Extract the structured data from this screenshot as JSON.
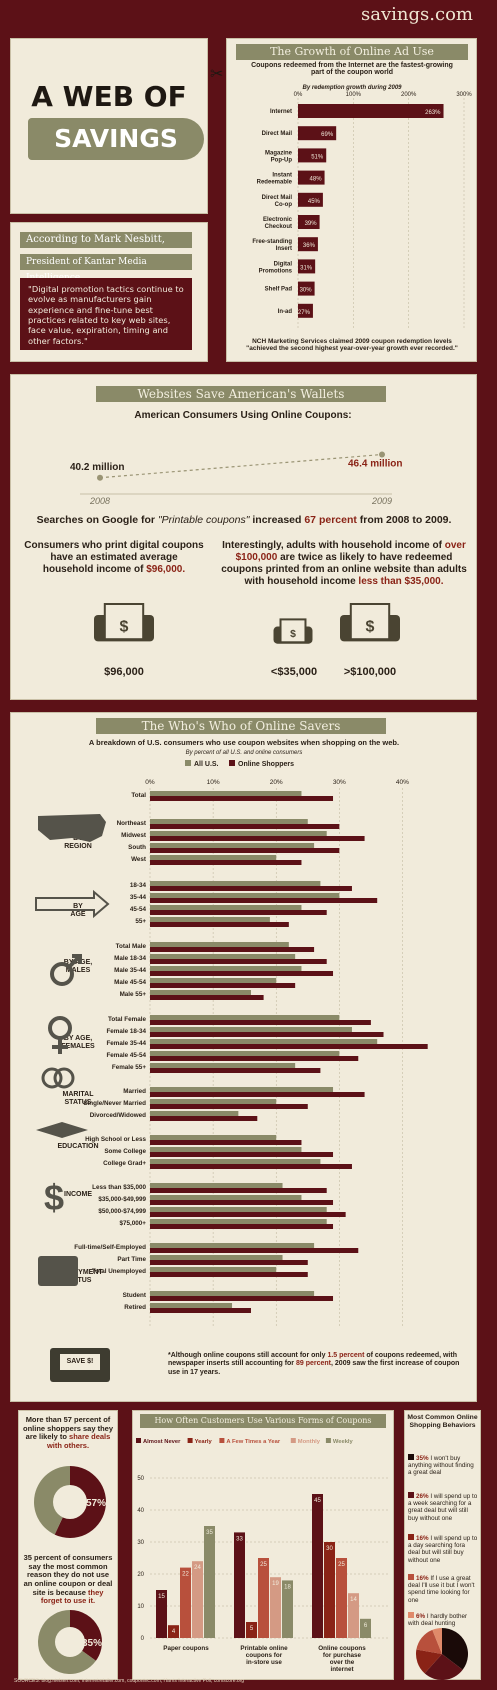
{
  "brand": "savings.com",
  "title": {
    "line1": "A WEB OF",
    "line2": "SAVINGS"
  },
  "quote": {
    "line1": "According to Mark Nesbitt,",
    "line2": "President of Kantar Media Intelligence,",
    "text": "\"Digital promotion tactics continue to evolve as manufacturers gain experience and fine-tune best practices related to key web sites, face value, expiration, timing and other factors.\""
  },
  "growth": {
    "title": "The Growth of Online Ad Use",
    "subtitle": "Coupons redeemed from the Internet are the fastest-growing part of the coupon world",
    "note": "By redemption growth during 2009",
    "footer": "NCH Marketing Services claimed 2009 coupon redemption levels \"achieved the second highest year-over-year growth ever recorded.\""
  },
  "websites": {
    "title": "Websites Save American's Wallets",
    "subtitle": "American Consumers Using Online Coupons:",
    "google_text_a": "Searches on Google for ",
    "google_text_b": "\"Printable coupons\"",
    "google_text_c": " increased ",
    "google_text_d": "67 percent",
    "google_text_e": " from 2008 to 2009.",
    "consumers_a": "Consumers who print digital coupons have an estimated average household income of ",
    "consumers_b": "$96,000.",
    "adults_a": "Interestingly, adults with household income of ",
    "adults_b": "over $100,000",
    "adults_c": " are twice as likely to have redeemed coupons printed from an online website than adults with household income ",
    "adults_d": "less than $35,000.",
    "printer1_label": "$96,000",
    "printer2_label": "<$35,000",
    "printer3_label": ">$100,000"
  },
  "who": {
    "title": "The Who's Who of Online Savers",
    "subtitle": "A breakdown of U.S. consumers who use coupon websites when shopping on the web.",
    "note": "By percent of all U.S. and online consumers",
    "groups": [
      "BY REGION",
      "BY AGE",
      "BY AGE, MALES",
      "BY AGE, FEMALES",
      "MARITAL STATUS",
      "EDUCATION",
      "INCOME",
      "EMPLOYMENT STATUS"
    ],
    "badge": "SAVE $!",
    "footnote_a": "*Although online coupons still account for only ",
    "footnote_b": "1.5 percent",
    "footnote_c": " of coupons redeemed, with newspaper inserts still accounting for ",
    "footnote_d": "89 percent",
    "footnote_e": ", 2009 saw the first increase of coupon use in 17 years."
  },
  "share": {
    "text1_a": "More than 57 percent of online shoppers say they are likely to ",
    "text1_b": "share deals with others.",
    "pie1_label": "57%",
    "text2_a": "35 percent of consumers say the most common reason they do not use an online coupon or deal site is because ",
    "text2_b": "they forget to use it.",
    "pie2_label": "35%",
    "pie1_value": 57,
    "pie2_value": 35
  },
  "forms": {
    "title": "How Often Customers Use Various Forms of Coupons"
  },
  "behaviors": {
    "title": "Most Common Online Shopping Behaviors",
    "items": [
      {
        "pct": "35%",
        "text": " I won't buy anything without finding a great deal",
        "color": "#1a0a08"
      },
      {
        "pct": "26%",
        "text": " I will spend up to a week searching for a great deal but will still buy without one",
        "color": "#5c1117"
      },
      {
        "pct": "16%",
        "text": " I will spend up to a day searching fora deal but will still buy without one",
        "color": "#8a2316"
      },
      {
        "pct": "16%",
        "text": " If I use a great deal I'll use it but I won't spend time looking for one",
        "color": "#b8503c"
      },
      {
        "pct": "6%",
        "text": " I hardly bother with deal hunting",
        "color": "#e08a6a"
      }
    ]
  },
  "sources": "SOURCES: blog.nielsen.com, internetretailer.com, couponinc.com, Harris Interactive Poll, comscore.org",
  "chart_data": [
    {
      "type": "bar",
      "title": "The Growth of Online Ad Use",
      "categories": [
        "Internet",
        "Direct Mail",
        "Magazine Pop-Up",
        "Instant Redeemable",
        "Direct Mail Co-op",
        "Electronic Checkout",
        "Free-standing Insert",
        "Digital Promotions",
        "Shelf Pad",
        "In-ad"
      ],
      "values": [
        263,
        69,
        51,
        48,
        45,
        39,
        36,
        31,
        30,
        27
      ],
      "value_labels": [
        "263%",
        "69%",
        "51%",
        "48%",
        "45%",
        "39%",
        "36%",
        "31%",
        "30%",
        "27%"
      ],
      "xticks": [
        "0%",
        "100%",
        "200%",
        "300%"
      ],
      "xlim": [
        0,
        300
      ]
    },
    {
      "type": "line",
      "title": "American Consumers Using Online Coupons:",
      "x": [
        "2008",
        "2009"
      ],
      "values": [
        40.2,
        46.4
      ],
      "value_labels": [
        "40.2 million",
        "46.4 million"
      ]
    },
    {
      "type": "bar",
      "title": "The Who's Who of Online Savers",
      "xticks": [
        "0%",
        "10%",
        "20%",
        "30%",
        "40%"
      ],
      "xlim": [
        0,
        45
      ],
      "series_names": [
        "All U.S.",
        "Online Shoppers"
      ],
      "categories": [
        "Total",
        "Northeast",
        "Midwest",
        "South",
        "West",
        "18-34",
        "35-44",
        "45-54",
        "55+",
        "Total Male",
        "Male 18-34",
        "Male 35-44",
        "Male 45-54",
        "Male 55+",
        "Total Female",
        "Female 18-34",
        "Female 35-44",
        "Female 45-54",
        "Female 55+",
        "Married",
        "Single/Never Married",
        "Divorced/Widowed",
        "High School or Less",
        "Some College",
        "College Grad+",
        "Less than $35,000",
        "$35,000-$49,999",
        "$50,000-$74,999",
        "$75,000+",
        "Full-time/Self-Employed",
        "Part Time",
        "Total Unemployed",
        "Student",
        "Retired"
      ],
      "all_us": [
        24,
        25,
        28,
        26,
        20,
        27,
        30,
        24,
        19,
        22,
        23,
        24,
        20,
        16,
        30,
        32,
        36,
        30,
        23,
        29,
        20,
        14,
        20,
        24,
        27,
        21,
        24,
        28,
        28,
        26,
        21,
        20,
        26,
        13
      ],
      "online": [
        29,
        30,
        34,
        30,
        24,
        32,
        36,
        28,
        22,
        26,
        28,
        29,
        23,
        18,
        35,
        37,
        44,
        33,
        27,
        34,
        25,
        17,
        24,
        29,
        32,
        28,
        29,
        31,
        29,
        33,
        25,
        25,
        29,
        16
      ]
    },
    {
      "type": "bar",
      "title": "How Often Customers Use Various Forms of Coupons",
      "categories": [
        "Paper coupons",
        "Printable online coupons for in-store use",
        "Online coupons for purchase over the internet"
      ],
      "series": [
        {
          "name": "Almost Never",
          "values": [
            15,
            33,
            45
          ]
        },
        {
          "name": "Yearly",
          "values": [
            4,
            5,
            30
          ]
        },
        {
          "name": "A Few Times a Year",
          "values": [
            22,
            25,
            25
          ]
        },
        {
          "name": "Monthly",
          "values": [
            24,
            19,
            14
          ]
        },
        {
          "name": "Weekly",
          "values": [
            35,
            18,
            6
          ]
        }
      ],
      "yticks": [
        "0",
        "10",
        "20",
        "30",
        "40",
        "50"
      ],
      "ylim": [
        0,
        50
      ]
    },
    {
      "type": "pie",
      "title": "Most Common Online Shopping Behaviors",
      "categories": [
        "I won't buy anything without finding a great deal",
        "I will spend up to a week searching for a great deal but will still buy without one",
        "I will spend up to a day searching fora deal but will still buy without one",
        "If I use a great deal I'll use it but I won't spend time looking for one",
        "I hardly bother with deal hunting"
      ],
      "values": [
        35,
        26,
        16,
        16,
        6
      ]
    }
  ]
}
